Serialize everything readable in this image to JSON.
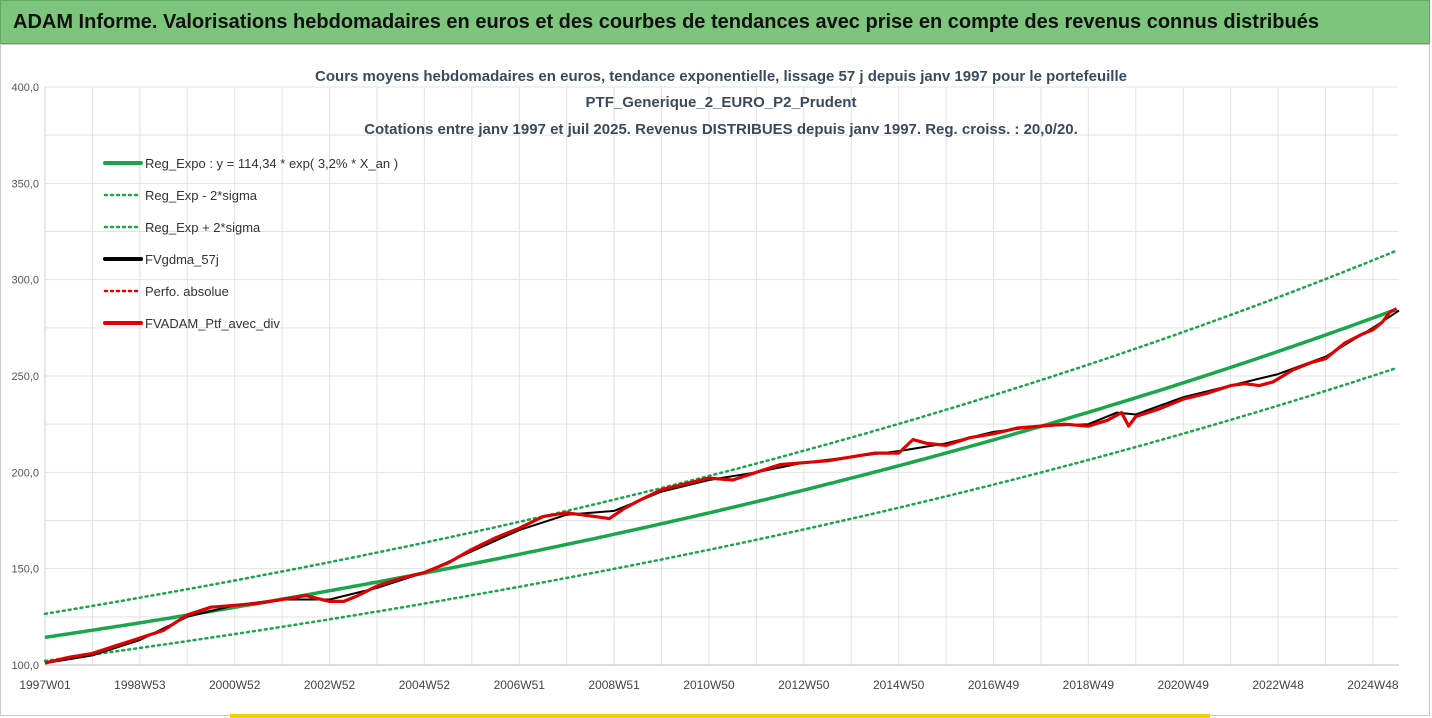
{
  "header": {
    "title": "ADAM Informe. Valorisations hebdomadaires en euros et des courbes de tendances avec prise en compte des revenus connus distribués"
  },
  "colors": {
    "banner": "#7dc57d",
    "trend_green": "#1aa64a",
    "price_red": "#e00000",
    "ma_black": "#000000"
  },
  "chart_data": {
    "type": "line",
    "title": "Cours moyens hebdomadaires en euros, tendance exponentielle, lissage 57 j depuis janv 1997 pour le portefeuille",
    "subtitle": "PTF_Generique_2_EURO_P2_Prudent",
    "subtitle2": "Cotations entre janv 1997 et juil 2025. Revenus DISTRIBUES depuis janv 1997. Reg. croiss. : 20,0/20.",
    "xlabel": "",
    "ylabel": "",
    "ylim": [
      100,
      400
    ],
    "y_ticks": [
      "100,0",
      "150,0",
      "200,0",
      "250,0",
      "300,0",
      "350,0",
      "400,0"
    ],
    "x_ticks": [
      "1997W01",
      "1998W53",
      "2000W52",
      "2002W52",
      "2004W52",
      "2006W51",
      "2008W51",
      "2010W50",
      "2012W50",
      "2014W50",
      "2016W49",
      "2018W49",
      "2020W49",
      "2022W48",
      "2024W48"
    ],
    "x_years": [
      1997.0,
      1999.0,
      2001.0,
      2003.0,
      2005.0,
      2007.0,
      2009.0,
      2011.0,
      2013.0,
      2015.0,
      2017.0,
      2019.0,
      2021.0,
      2023.0,
      2025.0
    ],
    "x_range": [
      1997.0,
      2025.55
    ],
    "grid": true,
    "legend_position": "top-left",
    "legend": [
      {
        "label": "Reg_Expo : y = 114,34 * exp( 3,2% *  X_an )",
        "style": "solid-green-thick"
      },
      {
        "label": "Reg_Exp - 2*sigma",
        "style": "dotted-green"
      },
      {
        "label": "Reg_Exp + 2*sigma",
        "style": "dotted-green"
      },
      {
        "label": "FVgdma_57j",
        "style": "solid-black"
      },
      {
        "label": "Perfo. absolue",
        "style": "dotted-red"
      },
      {
        "label": "FVADAM_Ptf_avec_div",
        "style": "solid-red-thick"
      }
    ],
    "regression": {
      "a": 114.34,
      "rate": 0.032,
      "sigma_factor": 0.107
    },
    "series": [
      {
        "name": "FVADAM_Ptf_avec_div",
        "x": [
          1997.0,
          1997.5,
          1998.0,
          1998.5,
          1999.0,
          1999.5,
          2000.0,
          2000.5,
          2001.0,
          2001.5,
          2002.0,
          2002.5,
          2003.0,
          2003.3,
          2003.6,
          2004.0,
          2004.5,
          2005.0,
          2005.5,
          2006.0,
          2006.5,
          2007.0,
          2007.5,
          2008.0,
          2008.3,
          2008.6,
          2008.9,
          2009.2,
          2009.5,
          2010.0,
          2010.5,
          2011.0,
          2011.5,
          2012.0,
          2012.5,
          2013.0,
          2013.5,
          2014.0,
          2014.5,
          2015.0,
          2015.3,
          2015.6,
          2016.0,
          2016.5,
          2017.0,
          2017.5,
          2018.0,
          2018.5,
          2019.0,
          2019.4,
          2019.7,
          2019.85,
          2020.0,
          2020.5,
          2021.0,
          2021.5,
          2022.0,
          2022.3,
          2022.6,
          2022.9,
          2023.3,
          2023.7,
          2024.0,
          2024.4,
          2024.8,
          2025.0,
          2025.2,
          2025.35,
          2025.5
        ],
        "y": [
          101,
          104,
          106,
          110,
          114,
          118,
          126,
          130,
          131,
          132,
          134,
          136,
          133,
          133,
          136,
          141,
          145,
          148,
          153,
          160,
          166,
          171,
          177,
          179,
          178,
          177,
          176,
          181,
          185,
          191,
          194,
          197,
          196,
          200,
          204,
          205,
          206,
          208,
          210,
          210,
          217,
          215,
          214,
          218,
          220,
          223,
          224,
          225,
          224,
          227,
          231,
          224,
          229,
          233,
          238,
          241,
          245,
          246,
          245,
          247,
          253,
          257,
          259,
          267,
          272,
          274,
          278,
          283,
          285
        ]
      },
      {
        "name": "FVgdma_57j",
        "x": [
          1997.0,
          1998.0,
          1999.0,
          2000.0,
          2001.0,
          2002.0,
          2003.0,
          2004.0,
          2005.0,
          2006.0,
          2007.0,
          2008.0,
          2009.0,
          2010.0,
          2011.0,
          2012.0,
          2013.0,
          2014.0,
          2015.0,
          2016.0,
          2017.0,
          2018.0,
          2019.0,
          2019.6,
          2020.0,
          2021.0,
          2022.0,
          2023.0,
          2024.0,
          2025.0,
          2025.55
        ],
        "y": [
          101,
          105,
          113,
          125,
          131,
          134,
          134,
          140,
          148,
          159,
          170,
          178,
          180,
          190,
          196,
          200,
          205,
          208,
          211,
          215,
          221,
          224,
          225,
          231,
          230,
          239,
          245,
          251,
          260,
          275,
          284
        ]
      }
    ]
  }
}
